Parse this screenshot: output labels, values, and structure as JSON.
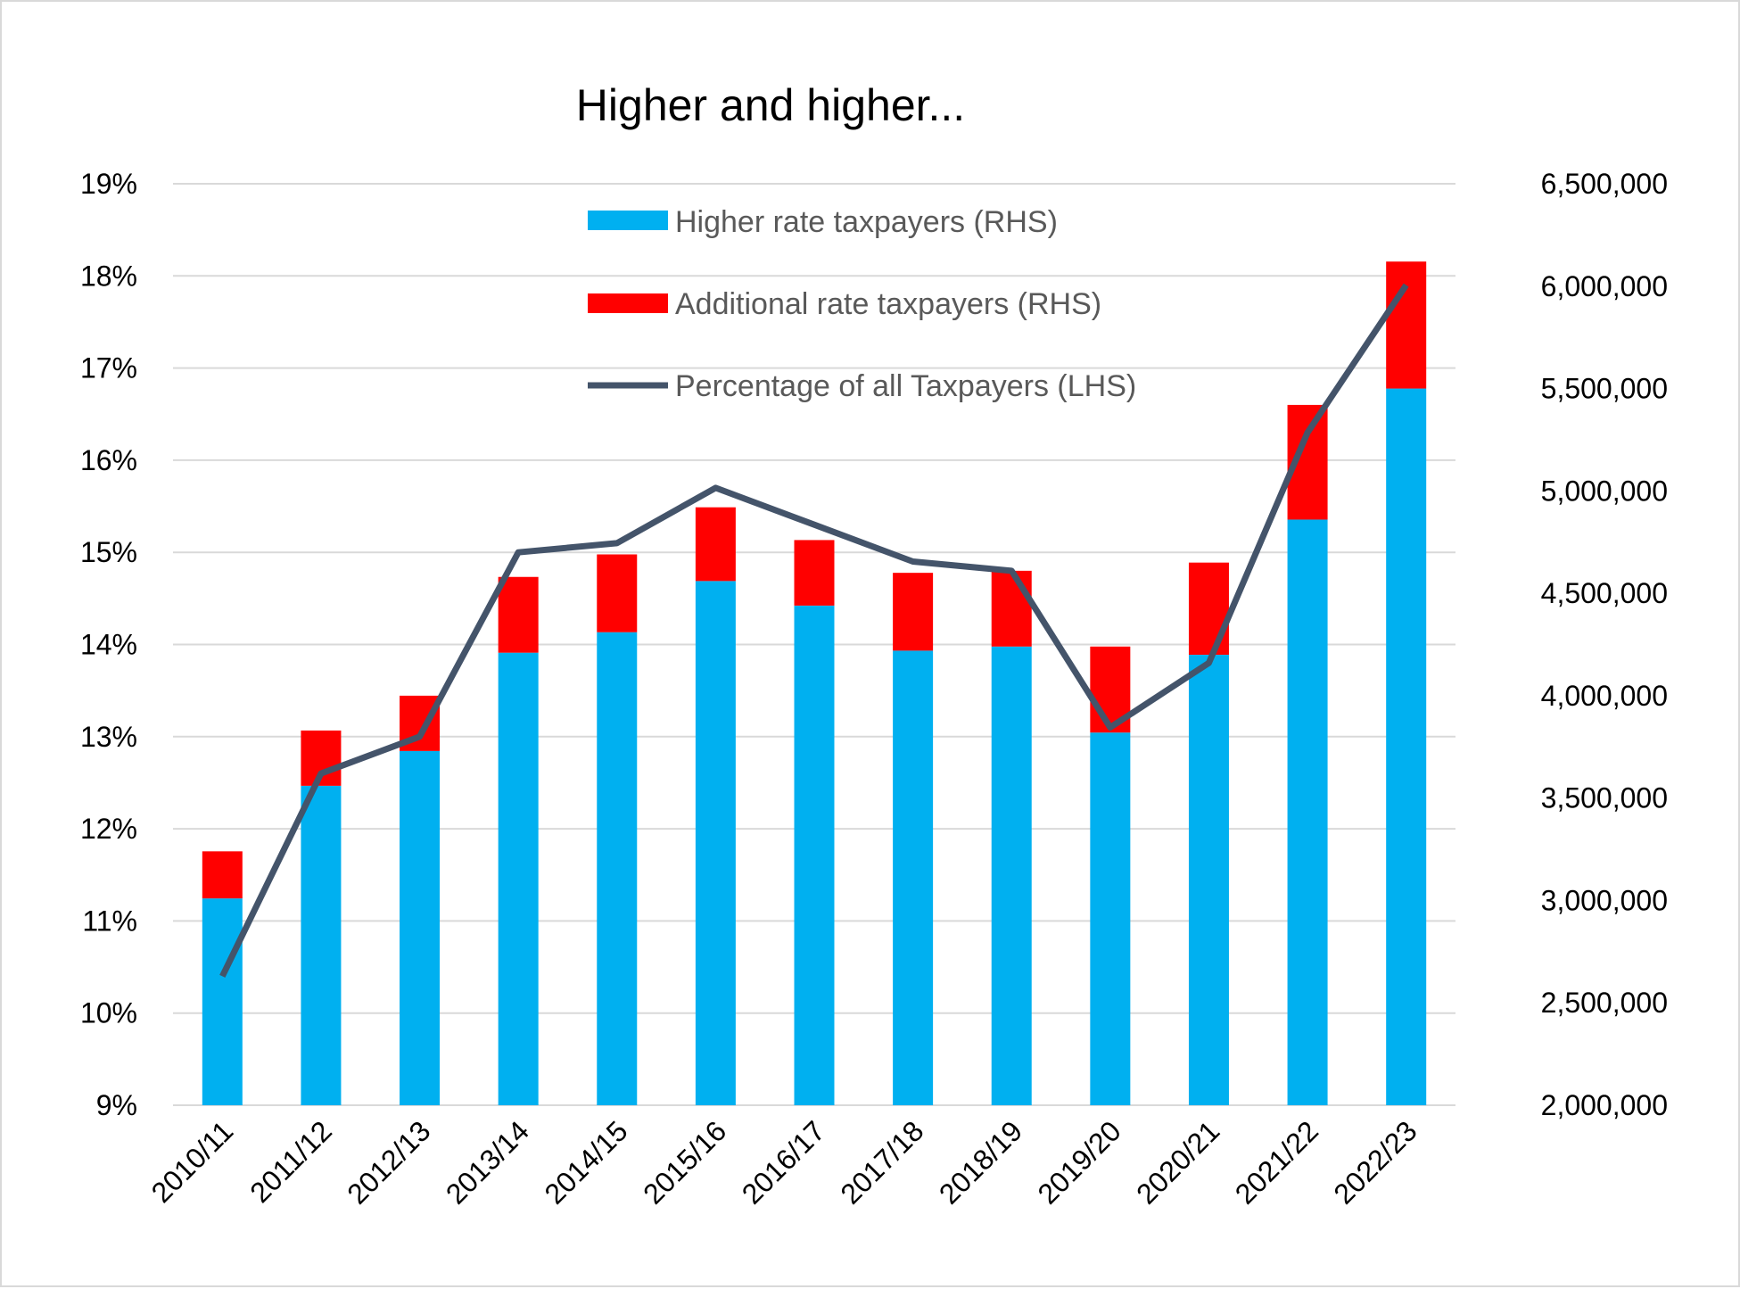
{
  "chart_data": {
    "type": "bar",
    "title": "Higher and higher...",
    "categories": [
      "2010/11",
      "2011/12",
      "2012/13",
      "2013/14",
      "2014/15",
      "2015/16",
      "2016/17",
      "2017/18",
      "2018/19",
      "2019/20",
      "2020/21",
      "2021/22",
      "2022/23"
    ],
    "stacked": true,
    "series": [
      {
        "name": "Higher rate taxpayers (RHS)",
        "type": "bar",
        "axis": "right",
        "color": "#00b0f0",
        "values": [
          3010000,
          3560000,
          3730000,
          4210000,
          4310000,
          4560000,
          4440000,
          4220000,
          4240000,
          3820000,
          4200000,
          4860000,
          5500000
        ]
      },
      {
        "name": "Additional rate taxpayers (RHS)",
        "type": "bar",
        "axis": "right",
        "color": "#ff0000",
        "values": [
          230000,
          270000,
          270000,
          370000,
          380000,
          360000,
          320000,
          380000,
          370000,
          420000,
          450000,
          560000,
          620000
        ]
      },
      {
        "name": "Percentage of all Taxpayers (LHS)",
        "type": "line",
        "axis": "left",
        "color": "#44546a",
        "values": [
          10.4,
          12.6,
          13.0,
          15.0,
          15.1,
          15.7,
          15.3,
          14.9,
          14.8,
          13.1,
          13.8,
          16.3,
          17.9
        ]
      }
    ],
    "y_left": {
      "ylim": [
        9,
        19
      ],
      "ticks": [
        9,
        10,
        11,
        12,
        13,
        14,
        15,
        16,
        17,
        18,
        19
      ],
      "tick_labels": [
        "9%",
        "10%",
        "11%",
        "12%",
        "13%",
        "14%",
        "15%",
        "16%",
        "17%",
        "18%",
        "19%"
      ]
    },
    "y_right": {
      "ylim": [
        2000000,
        6500000
      ],
      "ticks": [
        2000000,
        2500000,
        3000000,
        3500000,
        4000000,
        4500000,
        5000000,
        5500000,
        6000000,
        6500000
      ],
      "tick_labels": [
        "2,000,000",
        "2,500,000",
        "3,000,000",
        "3,500,000",
        "4,000,000",
        "4,500,000",
        "5,000,000",
        "5,500,000",
        "6,000,000",
        "6,500,000"
      ]
    },
    "grid": true,
    "legend": "top-center"
  }
}
